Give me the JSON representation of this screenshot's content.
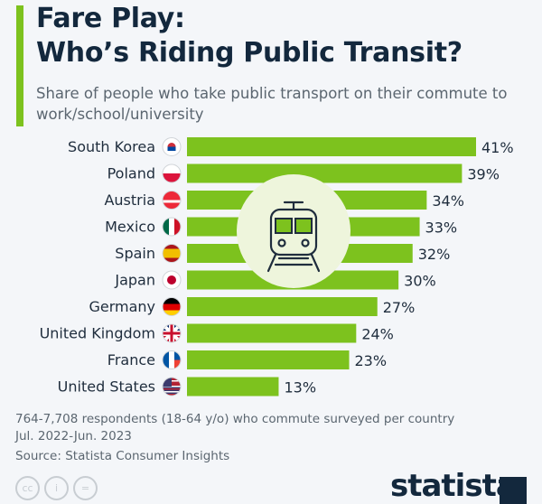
{
  "header": {
    "title": "Fare Play:\nWho’s Riding Public Transit?",
    "subtitle": "Share of people who take public transport on their commute to work/school/university"
  },
  "chart_data": {
    "type": "bar",
    "orientation": "horizontal",
    "categories": [
      "South Korea",
      "Poland",
      "Austria",
      "Mexico",
      "Spain",
      "Japan",
      "Germany",
      "United Kingdom",
      "France",
      "United States"
    ],
    "values": [
      41,
      39,
      34,
      33,
      32,
      30,
      27,
      24,
      23,
      13
    ],
    "value_labels": [
      "41%",
      "39%",
      "34%",
      "33%",
      "32%",
      "30%",
      "27%",
      "24%",
      "23%",
      "13%"
    ],
    "unit": "%",
    "bar_color": "#7dc21e",
    "grid": false,
    "icons": [
      "flag-south-korea",
      "flag-poland",
      "flag-austria",
      "flag-mexico",
      "flag-spain",
      "flag-japan",
      "flag-germany",
      "flag-uk",
      "flag-france",
      "flag-usa"
    ],
    "center_icon": "train-icon"
  },
  "footer": {
    "note": "764-7,708 respondents (18-64 y/o) who commute surveyed per country",
    "period": "Jul. 2022-Jun. 2023",
    "source": "Source: Statista Consumer Insights",
    "license_icons": [
      "cc",
      "by",
      "nd"
    ],
    "license_labels": [
      "cc",
      "i",
      "="
    ],
    "brand": "statista"
  }
}
